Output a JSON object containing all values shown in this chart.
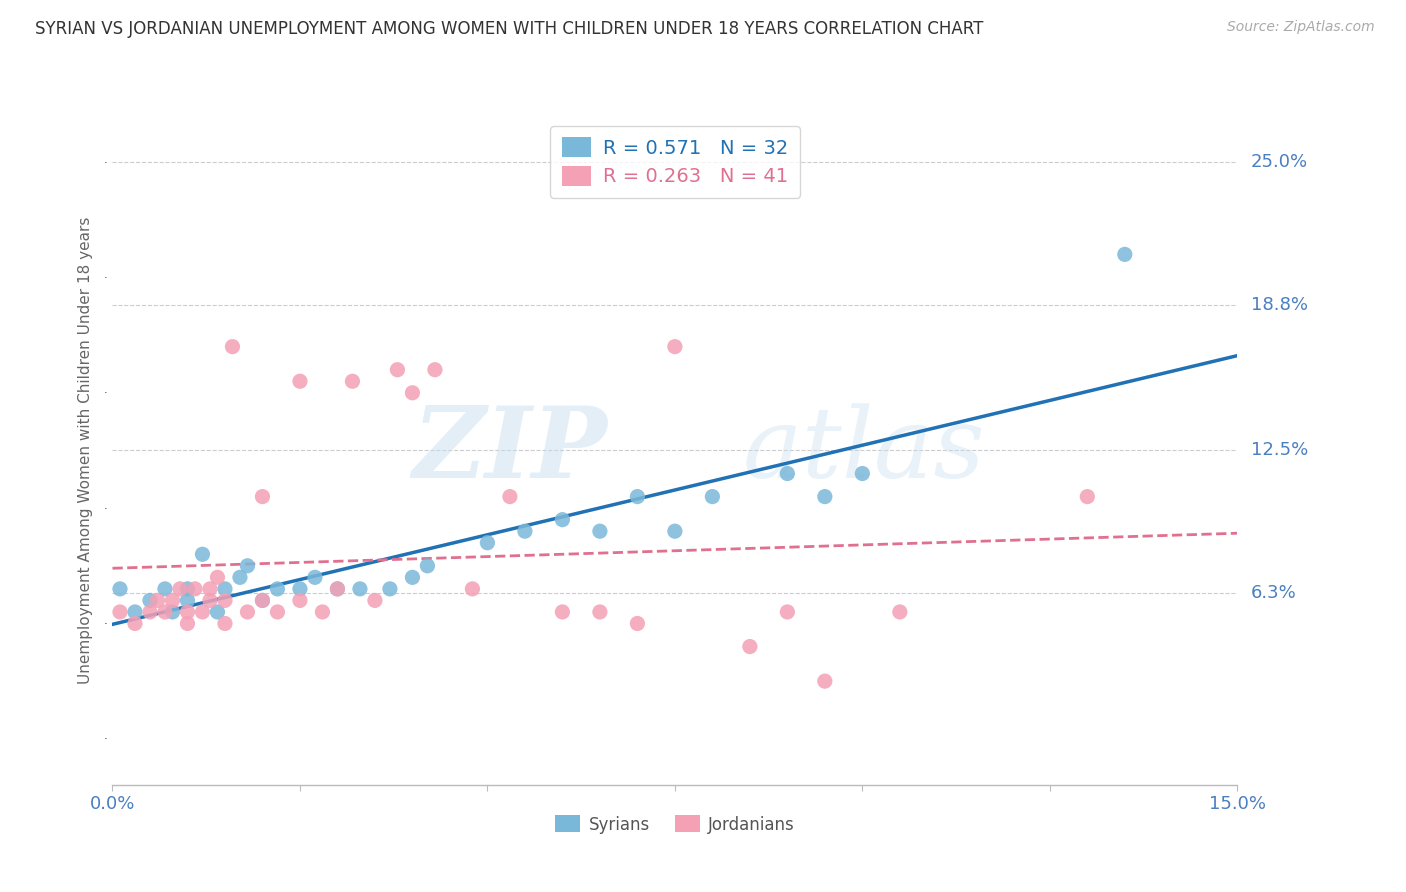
{
  "title": "SYRIAN VS JORDANIAN UNEMPLOYMENT AMONG WOMEN WITH CHILDREN UNDER 18 YEARS CORRELATION CHART",
  "source": "Source: ZipAtlas.com",
  "ylabel": "Unemployment Among Women with Children Under 18 years",
  "xlim": [
    0.0,
    0.15
  ],
  "ylim": [
    -0.02,
    0.27
  ],
  "xtick_positions": [
    0.0,
    0.025,
    0.05,
    0.075,
    0.1,
    0.125,
    0.15
  ],
  "xticklabels": [
    "0.0%",
    "",
    "",
    "",
    "",
    "",
    "15.0%"
  ],
  "ytick_positions": [
    0.063,
    0.125,
    0.188,
    0.25
  ],
  "ytick_labels": [
    "6.3%",
    "12.5%",
    "18.8%",
    "25.0%"
  ],
  "syrian_color": "#7ab8d9",
  "jordanian_color": "#f4a0b5",
  "syrian_line_color": "#2171b5",
  "jordanian_line_color": "#e07090",
  "legend_syrian_R": "0.571",
  "legend_syrian_N": "32",
  "legend_jordanian_R": "0.263",
  "legend_jordanian_N": "41",
  "watermark_zip": "ZIP",
  "watermark_atlas": "atlas",
  "background_color": "#ffffff",
  "syrians_x": [
    0.001,
    0.003,
    0.005,
    0.007,
    0.008,
    0.01,
    0.01,
    0.012,
    0.014,
    0.015,
    0.017,
    0.018,
    0.02,
    0.022,
    0.025,
    0.027,
    0.03,
    0.033,
    0.037,
    0.04,
    0.042,
    0.05,
    0.055,
    0.06,
    0.065,
    0.07,
    0.075,
    0.08,
    0.09,
    0.095,
    0.1,
    0.135
  ],
  "syrians_y": [
    0.065,
    0.055,
    0.06,
    0.065,
    0.055,
    0.06,
    0.065,
    0.08,
    0.055,
    0.065,
    0.07,
    0.075,
    0.06,
    0.065,
    0.065,
    0.07,
    0.065,
    0.065,
    0.065,
    0.07,
    0.075,
    0.085,
    0.09,
    0.095,
    0.09,
    0.105,
    0.09,
    0.105,
    0.115,
    0.105,
    0.115,
    0.21
  ],
  "jordanians_x": [
    0.001,
    0.003,
    0.005,
    0.006,
    0.007,
    0.008,
    0.009,
    0.01,
    0.01,
    0.011,
    0.012,
    0.013,
    0.013,
    0.014,
    0.015,
    0.015,
    0.016,
    0.018,
    0.02,
    0.02,
    0.022,
    0.025,
    0.025,
    0.028,
    0.03,
    0.032,
    0.035,
    0.038,
    0.04,
    0.043,
    0.048,
    0.053,
    0.06,
    0.065,
    0.07,
    0.075,
    0.085,
    0.09,
    0.095,
    0.105,
    0.13
  ],
  "jordanians_y": [
    0.055,
    0.05,
    0.055,
    0.06,
    0.055,
    0.06,
    0.065,
    0.05,
    0.055,
    0.065,
    0.055,
    0.06,
    0.065,
    0.07,
    0.05,
    0.06,
    0.17,
    0.055,
    0.06,
    0.105,
    0.055,
    0.06,
    0.155,
    0.055,
    0.065,
    0.155,
    0.06,
    0.16,
    0.15,
    0.16,
    0.065,
    0.105,
    0.055,
    0.055,
    0.05,
    0.17,
    0.04,
    0.055,
    0.025,
    0.055,
    0.105
  ]
}
